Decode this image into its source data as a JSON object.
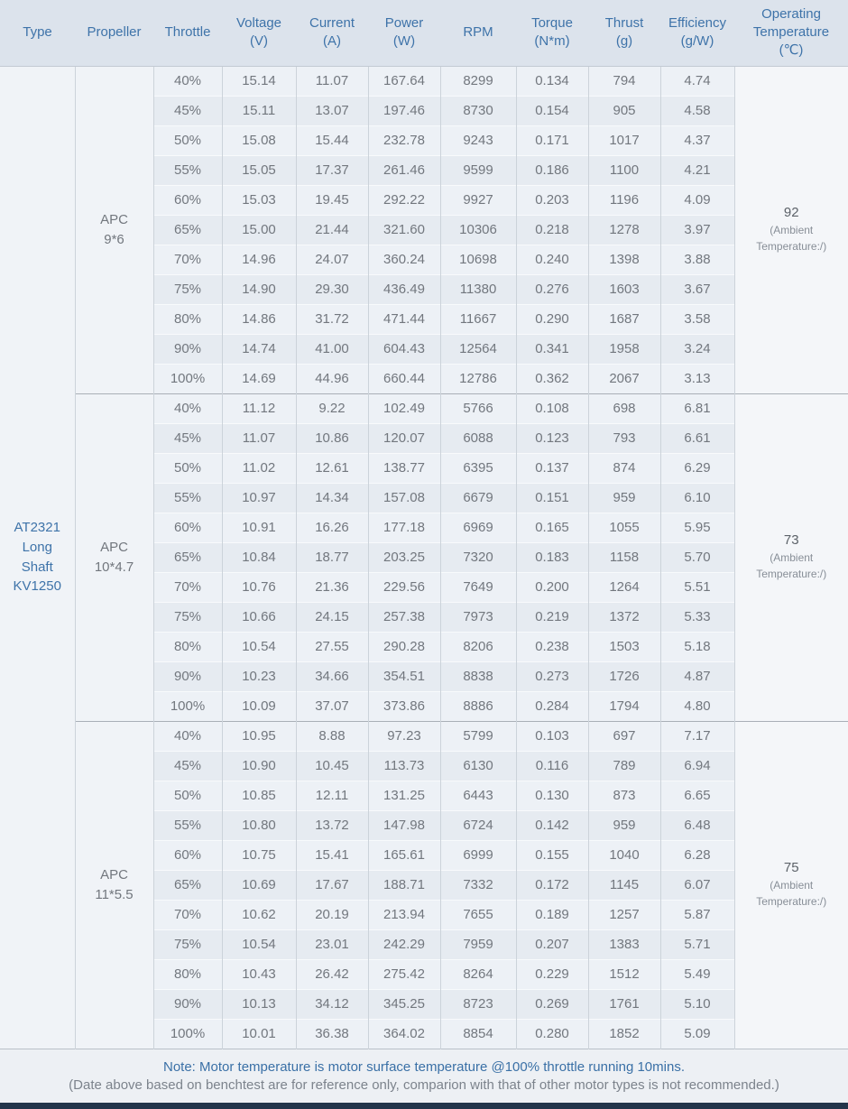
{
  "page": {
    "background": "#edf0f4",
    "accent_blue": "#3e73a9",
    "header_background": "#dce3ec",
    "bottom_bar_color": "#22344a"
  },
  "table": {
    "columns": [
      {
        "key": "type",
        "title": "Type",
        "unit": ""
      },
      {
        "key": "propeller",
        "title": "Propeller",
        "unit": ""
      },
      {
        "key": "throttle",
        "title": "Throttle",
        "unit": ""
      },
      {
        "key": "voltage",
        "title": "Voltage",
        "unit": "(V)"
      },
      {
        "key": "current",
        "title": "Current",
        "unit": "(A)"
      },
      {
        "key": "power",
        "title": "Power",
        "unit": "(W)"
      },
      {
        "key": "rpm",
        "title": "RPM",
        "unit": ""
      },
      {
        "key": "torque",
        "title": "Torque",
        "unit": "(N*m)"
      },
      {
        "key": "thrust",
        "title": "Thrust",
        "unit": "(g)"
      },
      {
        "key": "efficiency",
        "title": "Efficiency",
        "unit": "(g/W)"
      },
      {
        "key": "operating-temperature",
        "title": "Operating Temperature",
        "unit": "(℃)"
      }
    ],
    "type_label": "AT2321 Long Shaft KV1250",
    "sections": [
      {
        "propeller": "APC\n9*6",
        "temperature": "92",
        "temperature_note": "(Ambient Temperature:/)",
        "rows": [
          [
            "40%",
            "15.14",
            "11.07",
            "167.64",
            "8299",
            "0.134",
            "794",
            "4.74"
          ],
          [
            "45%",
            "15.11",
            "13.07",
            "197.46",
            "8730",
            "0.154",
            "905",
            "4.58"
          ],
          [
            "50%",
            "15.08",
            "15.44",
            "232.78",
            "9243",
            "0.171",
            "1017",
            "4.37"
          ],
          [
            "55%",
            "15.05",
            "17.37",
            "261.46",
            "9599",
            "0.186",
            "1100",
            "4.21"
          ],
          [
            "60%",
            "15.03",
            "19.45",
            "292.22",
            "9927",
            "0.203",
            "1196",
            "4.09"
          ],
          [
            "65%",
            "15.00",
            "21.44",
            "321.60",
            "10306",
            "0.218",
            "1278",
            "3.97"
          ],
          [
            "70%",
            "14.96",
            "24.07",
            "360.24",
            "10698",
            "0.240",
            "1398",
            "3.88"
          ],
          [
            "75%",
            "14.90",
            "29.30",
            "436.49",
            "11380",
            "0.276",
            "1603",
            "3.67"
          ],
          [
            "80%",
            "14.86",
            "31.72",
            "471.44",
            "11667",
            "0.290",
            "1687",
            "3.58"
          ],
          [
            "90%",
            "14.74",
            "41.00",
            "604.43",
            "12564",
            "0.341",
            "1958",
            "3.24"
          ],
          [
            "100%",
            "14.69",
            "44.96",
            "660.44",
            "12786",
            "0.362",
            "2067",
            "3.13"
          ]
        ]
      },
      {
        "propeller": "APC\n10*4.7",
        "temperature": "73",
        "temperature_note": "(Ambient Temperature:/)",
        "rows": [
          [
            "40%",
            "11.12",
            "9.22",
            "102.49",
            "5766",
            "0.108",
            "698",
            "6.81"
          ],
          [
            "45%",
            "11.07",
            "10.86",
            "120.07",
            "6088",
            "0.123",
            "793",
            "6.61"
          ],
          [
            "50%",
            "11.02",
            "12.61",
            "138.77",
            "6395",
            "0.137",
            "874",
            "6.29"
          ],
          [
            "55%",
            "10.97",
            "14.34",
            "157.08",
            "6679",
            "0.151",
            "959",
            "6.10"
          ],
          [
            "60%",
            "10.91",
            "16.26",
            "177.18",
            "6969",
            "0.165",
            "1055",
            "5.95"
          ],
          [
            "65%",
            "10.84",
            "18.77",
            "203.25",
            "7320",
            "0.183",
            "1158",
            "5.70"
          ],
          [
            "70%",
            "10.76",
            "21.36",
            "229.56",
            "7649",
            "0.200",
            "1264",
            "5.51"
          ],
          [
            "75%",
            "10.66",
            "24.15",
            "257.38",
            "7973",
            "0.219",
            "1372",
            "5.33"
          ],
          [
            "80%",
            "10.54",
            "27.55",
            "290.28",
            "8206",
            "0.238",
            "1503",
            "5.18"
          ],
          [
            "90%",
            "10.23",
            "34.66",
            "354.51",
            "8838",
            "0.273",
            "1726",
            "4.87"
          ],
          [
            "100%",
            "10.09",
            "37.07",
            "373.86",
            "8886",
            "0.284",
            "1794",
            "4.80"
          ]
        ]
      },
      {
        "propeller": "APC\n11*5.5",
        "temperature": "75",
        "temperature_note": "(Ambient Temperature:/)",
        "rows": [
          [
            "40%",
            "10.95",
            "8.88",
            "97.23",
            "5799",
            "0.103",
            "697",
            "7.17"
          ],
          [
            "45%",
            "10.90",
            "10.45",
            "113.73",
            "6130",
            "0.116",
            "789",
            "6.94"
          ],
          [
            "50%",
            "10.85",
            "12.11",
            "131.25",
            "6443",
            "0.130",
            "873",
            "6.65"
          ],
          [
            "55%",
            "10.80",
            "13.72",
            "147.98",
            "6724",
            "0.142",
            "959",
            "6.48"
          ],
          [
            "60%",
            "10.75",
            "15.41",
            "165.61",
            "6999",
            "0.155",
            "1040",
            "6.28"
          ],
          [
            "65%",
            "10.69",
            "17.67",
            "188.71",
            "7332",
            "0.172",
            "1145",
            "6.07"
          ],
          [
            "70%",
            "10.62",
            "20.19",
            "213.94",
            "7655",
            "0.189",
            "1257",
            "5.87"
          ],
          [
            "75%",
            "10.54",
            "23.01",
            "242.29",
            "7959",
            "0.207",
            "1383",
            "5.71"
          ],
          [
            "80%",
            "10.43",
            "26.42",
            "275.42",
            "8264",
            "0.229",
            "1512",
            "5.49"
          ],
          [
            "90%",
            "10.13",
            "34.12",
            "345.25",
            "8723",
            "0.269",
            "1761",
            "5.10"
          ],
          [
            "100%",
            "10.01",
            "36.38",
            "364.02",
            "8854",
            "0.280",
            "1852",
            "5.09"
          ]
        ]
      }
    ]
  },
  "notes": {
    "line1": "Note: Motor temperature is motor surface temperature @100% throttle running 10mins.",
    "line2": "(Date above based on benchtest are for reference only, comparion with that of other motor types is not recommended.)"
  }
}
